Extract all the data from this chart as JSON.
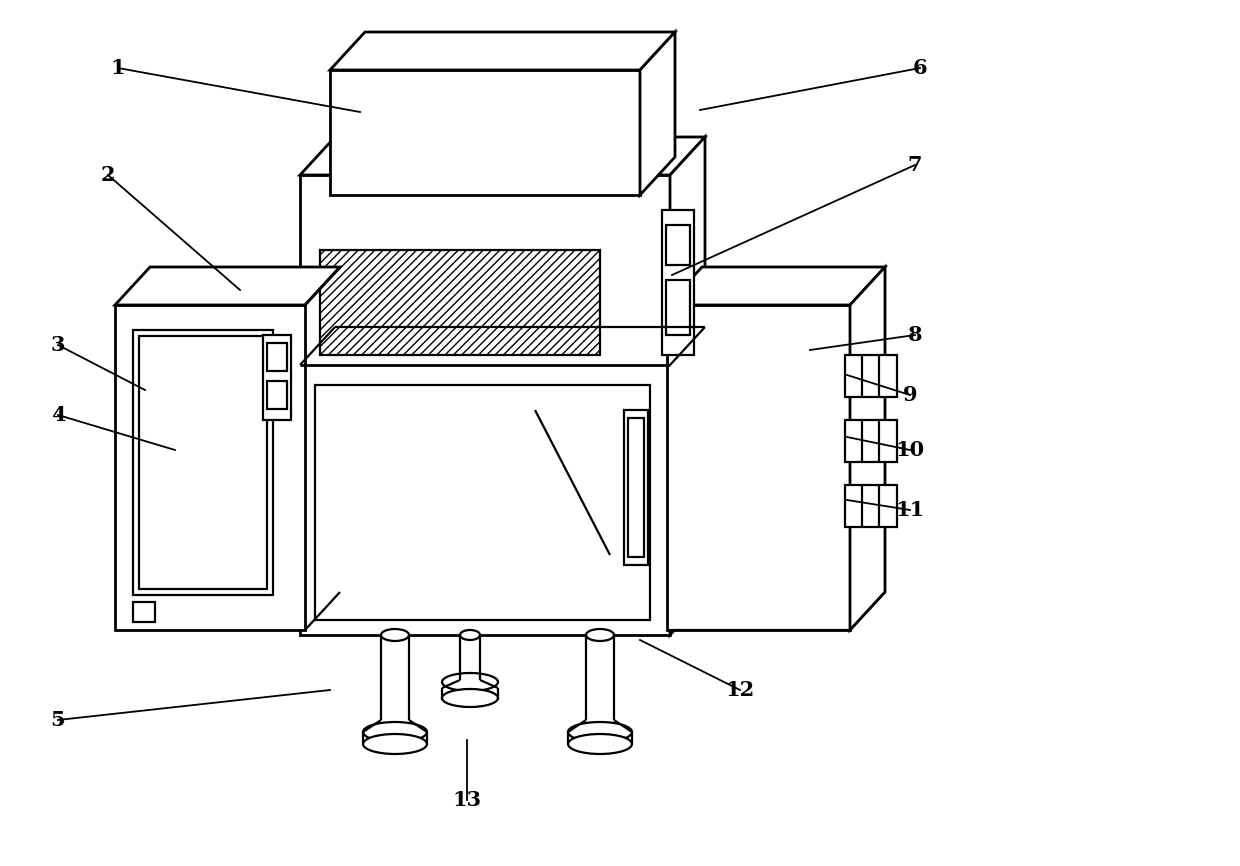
{
  "bg": "#ffffff",
  "lc": "#000000",
  "lw": 1.6,
  "tlw": 2.0,
  "fig_w": 12.4,
  "fig_h": 8.66,
  "dpi": 100
}
